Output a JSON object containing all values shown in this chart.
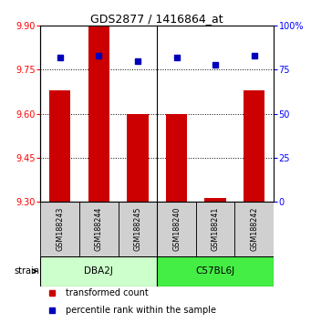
{
  "title": "GDS2877 / 1416864_at",
  "samples": [
    "GSM188243",
    "GSM188244",
    "GSM188245",
    "GSM188240",
    "GSM188241",
    "GSM188242"
  ],
  "group_labels": [
    "DBA2J",
    "C57BL6J"
  ],
  "group_color_left": "#ccffcc",
  "group_color_right": "#44ee44",
  "transformed_count": [
    9.68,
    9.9,
    9.6,
    9.6,
    9.31,
    9.68
  ],
  "percentile_rank": [
    82,
    83,
    80,
    82,
    78,
    83
  ],
  "ylim_left": [
    9.3,
    9.9
  ],
  "ylim_right": [
    0,
    100
  ],
  "yticks_left": [
    9.3,
    9.45,
    9.6,
    9.75,
    9.9
  ],
  "yticks_right": [
    0,
    25,
    50,
    75,
    100
  ],
  "ytick_labels_right": [
    "0",
    "25",
    "50",
    "75",
    "100%"
  ],
  "bar_color": "#cc0000",
  "marker_color": "#0000bb",
  "bar_bottom": 9.3,
  "dotted_lines": [
    9.45,
    9.6,
    9.75
  ],
  "legend_items": [
    "transformed count",
    "percentile rank within the sample"
  ],
  "legend_colors": [
    "#cc0000",
    "#0000bb"
  ]
}
